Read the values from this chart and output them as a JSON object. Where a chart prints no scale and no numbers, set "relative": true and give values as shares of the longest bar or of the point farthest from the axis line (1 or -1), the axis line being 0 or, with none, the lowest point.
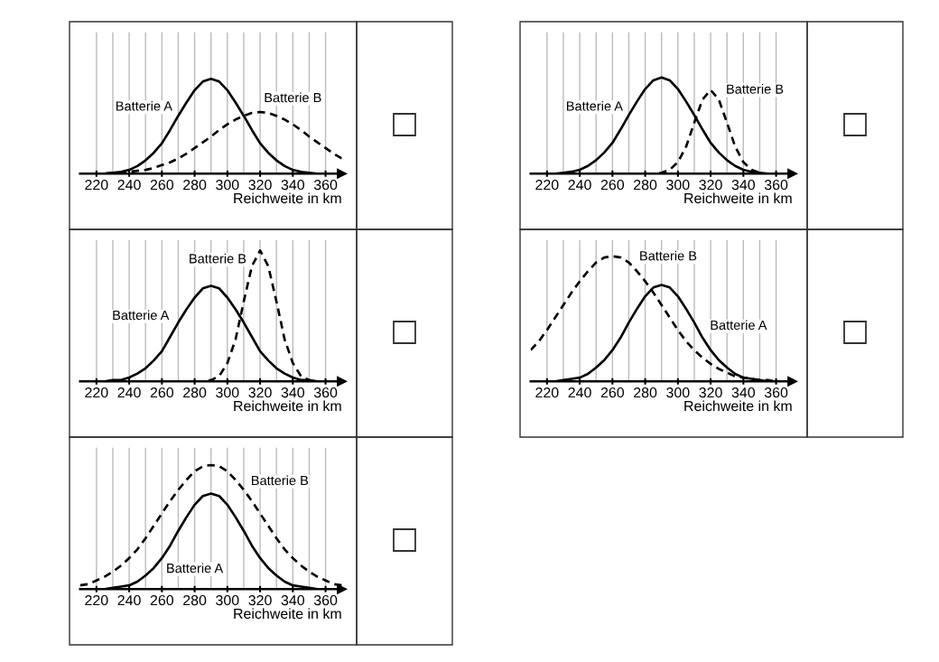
{
  "chart_data": [
    {
      "type": "line",
      "relative": true,
      "xlabel": "Reichweite in km",
      "xlim": [
        210,
        370
      ],
      "grid": "x",
      "xticks": [
        220,
        {
          "value": 230,
          "label": null
        },
        240,
        {
          "value": 250,
          "label": null
        },
        260,
        {
          "value": 270,
          "label": null
        },
        280,
        {
          "value": 290,
          "label": null
        },
        300,
        {
          "value": 310,
          "label": null
        },
        320,
        {
          "value": 330,
          "label": null
        },
        340,
        {
          "value": 350,
          "label": null
        },
        360
      ],
      "x": [
        210,
        215,
        220,
        225,
        230,
        235,
        240,
        245,
        250,
        255,
        260,
        265,
        270,
        275,
        280,
        285,
        290,
        295,
        300,
        305,
        310,
        315,
        320,
        325,
        330,
        335,
        340,
        345,
        350,
        355,
        360,
        365,
        370
      ],
      "series": [
        {
          "name": "Batterie A",
          "color": "#000000",
          "line_style": "solid",
          "values": [
            0.0,
            0.0,
            0.0,
            0.0,
            0.01,
            0.02,
            0.04,
            0.08,
            0.14,
            0.22,
            0.32,
            0.46,
            0.61,
            0.75,
            0.88,
            0.97,
            1.0,
            0.97,
            0.88,
            0.75,
            0.61,
            0.46,
            0.32,
            0.22,
            0.14,
            0.08,
            0.04,
            0.02,
            0.01,
            0.0,
            0.0,
            0.0,
            0.0
          ]
        },
        {
          "name": "Batterie B",
          "color": "#000000",
          "line_style": "dashed",
          "values": [
            0.0,
            0.0,
            0.0,
            0.0,
            0.01,
            0.01,
            0.02,
            0.03,
            0.04,
            0.06,
            0.09,
            0.12,
            0.16,
            0.21,
            0.27,
            0.33,
            0.39,
            0.46,
            0.52,
            0.57,
            0.61,
            0.64,
            0.65,
            0.64,
            0.61,
            0.57,
            0.52,
            0.46,
            0.39,
            0.33,
            0.27,
            0.21,
            0.16
          ]
        }
      ]
    },
    {
      "type": "line",
      "relative": true,
      "xlabel": "Reichweite in km",
      "xlim": [
        210,
        370
      ],
      "grid": "x",
      "xticks": [
        220,
        {
          "value": 230,
          "label": null
        },
        240,
        {
          "value": 250,
          "label": null
        },
        260,
        {
          "value": 270,
          "label": null
        },
        280,
        {
          "value": 290,
          "label": null
        },
        300,
        {
          "value": 310,
          "label": null
        },
        320,
        {
          "value": 330,
          "label": null
        },
        340,
        {
          "value": 350,
          "label": null
        },
        360
      ],
      "x": [
        210,
        215,
        220,
        225,
        230,
        235,
        240,
        245,
        250,
        255,
        260,
        265,
        270,
        275,
        280,
        285,
        290,
        295,
        300,
        305,
        310,
        315,
        320,
        325,
        330,
        335,
        340,
        345,
        350,
        355,
        360,
        365,
        370
      ],
      "series": [
        {
          "name": "Batterie A",
          "color": "#000000",
          "line_style": "solid",
          "values": [
            0.0,
            0.0,
            0.0,
            0.0,
            0.01,
            0.02,
            0.04,
            0.08,
            0.14,
            0.22,
            0.32,
            0.46,
            0.61,
            0.75,
            0.88,
            0.97,
            1.0,
            0.97,
            0.88,
            0.75,
            0.61,
            0.46,
            0.32,
            0.22,
            0.14,
            0.08,
            0.04,
            0.02,
            0.01,
            0.0,
            0.0,
            0.0,
            0.0
          ]
        },
        {
          "name": "Batterie B",
          "color": "#000000",
          "line_style": "dashed",
          "values": [
            0.0,
            0.0,
            0.0,
            0.0,
            0.0,
            0.0,
            0.0,
            0.0,
            0.0,
            0.0,
            0.0,
            0.0,
            0.0,
            0.0,
            0.0,
            0.0,
            0.01,
            0.04,
            0.12,
            0.28,
            0.53,
            0.77,
            0.87,
            0.77,
            0.53,
            0.28,
            0.12,
            0.04,
            0.01,
            null,
            null,
            null,
            null
          ]
        }
      ]
    },
    {
      "type": "line",
      "relative": true,
      "xlabel": "Reichweite in km",
      "xlim": [
        210,
        370
      ],
      "grid": "x",
      "xticks": [
        220,
        {
          "value": 230,
          "label": null
        },
        240,
        {
          "value": 250,
          "label": null
        },
        260,
        {
          "value": 270,
          "label": null
        },
        280,
        {
          "value": 290,
          "label": null
        },
        300,
        {
          "value": 310,
          "label": null
        },
        320,
        {
          "value": 330,
          "label": null
        },
        340,
        {
          "value": 350,
          "label": null
        },
        360
      ],
      "x": [
        210,
        215,
        220,
        225,
        230,
        235,
        240,
        245,
        250,
        255,
        260,
        265,
        270,
        275,
        280,
        285,
        290,
        295,
        300,
        305,
        310,
        315,
        320,
        325,
        330,
        335,
        340,
        345,
        350,
        355,
        360,
        365,
        370
      ],
      "series": [
        {
          "name": "Batterie A",
          "color": "#000000",
          "line_style": "solid",
          "values": [
            0.0,
            0.0,
            0.0,
            0.0,
            0.01,
            0.01,
            0.03,
            0.06,
            0.1,
            0.16,
            0.23,
            0.34,
            0.45,
            0.55,
            0.64,
            0.71,
            0.73,
            0.71,
            0.64,
            0.55,
            0.45,
            0.34,
            0.23,
            0.16,
            0.1,
            0.06,
            0.03,
            0.01,
            0.01,
            0.0,
            0.0,
            0.0,
            0.0
          ]
        },
        {
          "name": "Batterie B",
          "color": "#000000",
          "line_style": "dashed",
          "values": [
            0.0,
            0.0,
            0.0,
            0.0,
            0.0,
            0.0,
            0.0,
            0.0,
            0.0,
            0.0,
            0.0,
            0.0,
            0.0,
            0.0,
            0.0,
            0.0,
            0.01,
            0.04,
            0.14,
            0.32,
            0.61,
            0.88,
            1.0,
            0.88,
            0.61,
            0.32,
            0.14,
            0.04,
            0.01,
            null,
            null,
            null,
            null
          ]
        }
      ]
    },
    {
      "type": "line",
      "relative": true,
      "xlabel": "Reichweite in km",
      "xlim": [
        210,
        370
      ],
      "grid": "x",
      "xticks": [
        220,
        {
          "value": 230,
          "label": null
        },
        240,
        {
          "value": 250,
          "label": null
        },
        260,
        {
          "value": 270,
          "label": null
        },
        280,
        {
          "value": 290,
          "label": null
        },
        300,
        {
          "value": 310,
          "label": null
        },
        320,
        {
          "value": 330,
          "label": null
        },
        340,
        {
          "value": 350,
          "label": null
        },
        360
      ],
      "x": [
        210,
        215,
        220,
        225,
        230,
        235,
        240,
        245,
        250,
        255,
        260,
        265,
        270,
        275,
        280,
        285,
        290,
        295,
        300,
        305,
        310,
        315,
        320,
        325,
        330,
        335,
        340,
        345,
        350,
        355,
        360,
        365,
        370
      ],
      "series": [
        {
          "name": "Batterie A",
          "color": "#000000",
          "line_style": "solid",
          "values": [
            0.0,
            0.0,
            0.0,
            0.0,
            0.01,
            0.02,
            0.03,
            0.06,
            0.11,
            0.17,
            0.25,
            0.35,
            0.47,
            0.58,
            0.68,
            0.75,
            0.77,
            0.75,
            0.68,
            0.58,
            0.47,
            0.35,
            0.25,
            0.17,
            0.11,
            0.06,
            0.03,
            0.02,
            0.01,
            0.0,
            0.0,
            0.0,
            0.0
          ]
        },
        {
          "name": "Batterie B",
          "color": "#000000",
          "line_style": "dashed",
          "values": [
            0.25,
            0.32,
            0.41,
            0.51,
            0.61,
            0.71,
            0.8,
            0.88,
            0.95,
            0.99,
            1.0,
            0.99,
            0.95,
            0.88,
            0.8,
            0.71,
            0.61,
            0.51,
            0.41,
            0.32,
            0.25,
            0.19,
            0.14,
            0.1,
            0.07,
            0.04,
            0.03,
            0.02,
            0.01,
            0.01,
            0.0,
            null,
            null
          ]
        }
      ]
    },
    {
      "type": "line",
      "relative": true,
      "xlabel": "Reichweite in km",
      "xlim": [
        210,
        370
      ],
      "grid": "x",
      "xticks": [
        220,
        {
          "value": 230,
          "label": null
        },
        240,
        {
          "value": 250,
          "label": null
        },
        260,
        {
          "value": 270,
          "label": null
        },
        280,
        {
          "value": 290,
          "label": null
        },
        300,
        {
          "value": 310,
          "label": null
        },
        320,
        {
          "value": 330,
          "label": null
        },
        340,
        {
          "value": 350,
          "label": null
        },
        360
      ],
      "x": [
        210,
        215,
        220,
        225,
        230,
        235,
        240,
        245,
        250,
        255,
        260,
        265,
        270,
        275,
        280,
        285,
        290,
        295,
        300,
        305,
        310,
        315,
        320,
        325,
        330,
        335,
        340,
        345,
        350,
        355,
        360,
        365,
        370
      ],
      "series": [
        {
          "name": "Batterie A",
          "color": "#000000",
          "line_style": "solid",
          "values": [
            0.0,
            0.0,
            0.0,
            0.0,
            0.01,
            0.02,
            0.03,
            0.06,
            0.11,
            0.17,
            0.25,
            0.35,
            0.47,
            0.58,
            0.68,
            0.75,
            0.77,
            0.75,
            0.68,
            0.58,
            0.47,
            0.35,
            0.25,
            0.17,
            0.11,
            0.06,
            0.03,
            0.02,
            0.01,
            0.0,
            0.0,
            0.0,
            0.0
          ]
        },
        {
          "name": "Batterie B",
          "color": "#000000",
          "line_style": "dashed",
          "values": [
            0.03,
            0.04,
            0.07,
            0.1,
            0.14,
            0.19,
            0.25,
            0.32,
            0.41,
            0.51,
            0.61,
            0.71,
            0.8,
            0.88,
            0.95,
            0.99,
            1.0,
            0.99,
            0.95,
            0.88,
            0.8,
            0.71,
            0.61,
            0.51,
            0.41,
            0.32,
            0.25,
            0.19,
            0.14,
            0.1,
            0.07,
            0.04,
            0.03
          ]
        }
      ]
    }
  ]
}
